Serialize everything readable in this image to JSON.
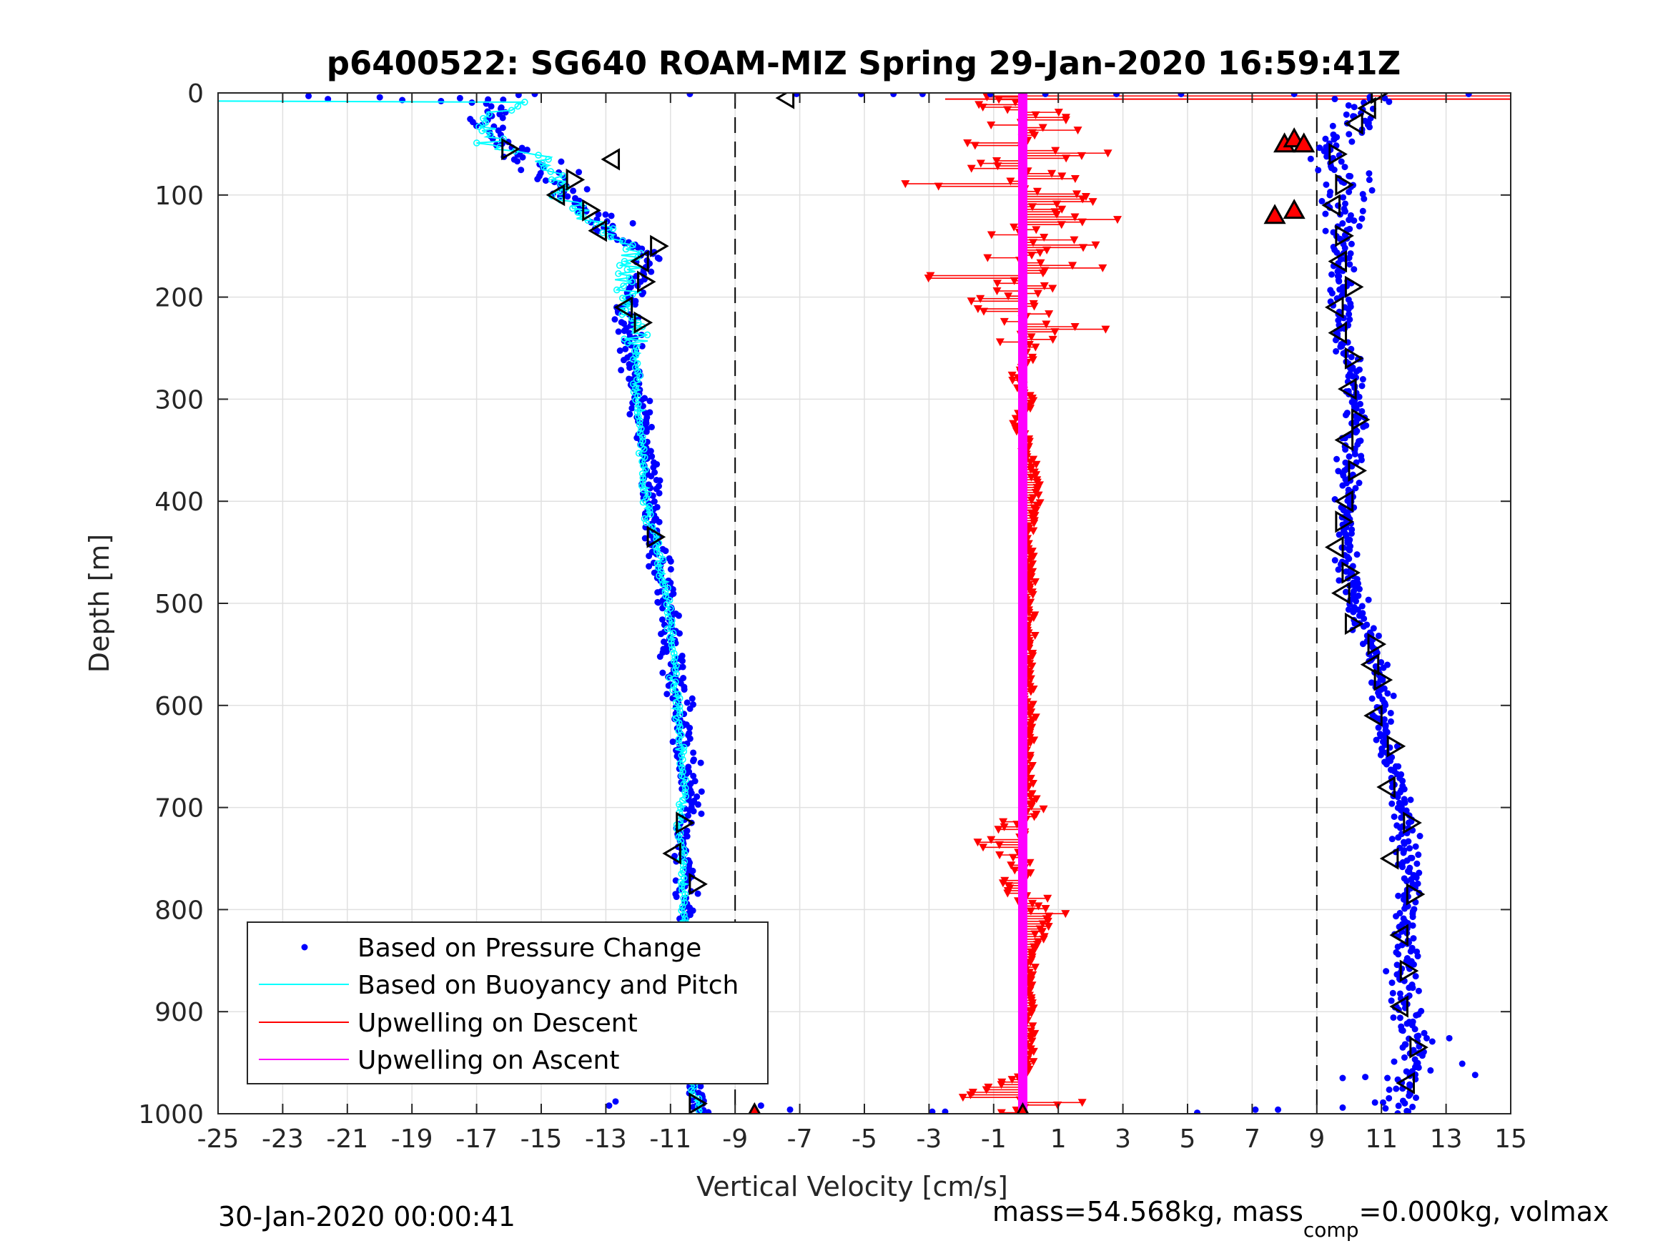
{
  "chart_data": {
    "type": "scatter",
    "title": "p6400522: SG640 ROAM-MIZ Spring 29-Jan-2020 16:59:41Z",
    "xlabel": "Vertical Velocity [cm/s]",
    "ylabel": "Depth [m]",
    "xlim": [
      -25,
      15
    ],
    "ylim": [
      0,
      1000
    ],
    "y_reversed": true,
    "xticks": [
      "-25",
      "-23",
      "-21",
      "-19",
      "-17",
      "-15",
      "-13",
      "-11",
      "-9",
      "-7",
      "-5",
      "-3",
      "-1",
      "1",
      "3",
      "5",
      "7",
      "9",
      "11",
      "13",
      "15"
    ],
    "yticks": [
      "0",
      "100",
      "200",
      "300",
      "400",
      "500",
      "600",
      "700",
      "800",
      "900",
      "1000"
    ],
    "grid": true,
    "legend_position": "bottom-left",
    "reference_lines_x": [
      -9,
      9
    ],
    "footer_left": "30-Jan-2020 00:00:41",
    "footer_right": {
      "prefix": "mass=54.568kg, mass",
      "sub": "comp",
      "suffix": "=0.000kg, volmax"
    },
    "colors": {
      "pressure": "#0000ff",
      "buoyancy": "#00ffff",
      "upwelling_descent": "#ff0000",
      "upwelling_ascent": "#ff00ff",
      "marker": "#000000",
      "refline": "#000000"
    },
    "series": [
      {
        "name": "Based on Pressure Change",
        "style": "dots",
        "descent_profile": [
          [
            0,
            -24.2
          ],
          [
            5,
            -17
          ],
          [
            10,
            -16.5
          ],
          [
            30,
            -16.6
          ],
          [
            50,
            -16.4
          ],
          [
            60,
            -15.5
          ],
          [
            70,
            -15
          ],
          [
            90,
            -14.5
          ],
          [
            110,
            -14
          ],
          [
            120,
            -13.3
          ],
          [
            140,
            -12.8
          ],
          [
            150,
            -12
          ],
          [
            160,
            -11.6
          ],
          [
            180,
            -12
          ],
          [
            200,
            -12.2
          ],
          [
            220,
            -12.4
          ],
          [
            240,
            -12.2
          ],
          [
            260,
            -12.2
          ],
          [
            300,
            -12.1
          ],
          [
            340,
            -11.8
          ],
          [
            360,
            -11.7
          ],
          [
            400,
            -11.6
          ],
          [
            440,
            -11.5
          ],
          [
            480,
            -11.2
          ],
          [
            520,
            -11
          ],
          [
            560,
            -10.9
          ],
          [
            600,
            -10.7
          ],
          [
            640,
            -10.6
          ],
          [
            680,
            -10.4
          ],
          [
            700,
            -10.3
          ],
          [
            720,
            -10.6
          ],
          [
            740,
            -10.8
          ],
          [
            760,
            -10.4
          ],
          [
            800,
            -10.6
          ],
          [
            860,
            -10.5
          ],
          [
            900,
            -10.4
          ],
          [
            940,
            -10.3
          ],
          [
            980,
            -10.2
          ],
          [
            1000,
            -10
          ]
        ],
        "ascent_profile": [
          [
            0,
            10.8
          ],
          [
            10,
            10.5
          ],
          [
            30,
            10.2
          ],
          [
            50,
            9.6
          ],
          [
            60,
            9.1
          ],
          [
            80,
            9.9
          ],
          [
            100,
            9.8
          ],
          [
            120,
            9.7
          ],
          [
            140,
            9.8
          ],
          [
            160,
            9.9
          ],
          [
            200,
            9.7
          ],
          [
            240,
            9.8
          ],
          [
            280,
            10.1
          ],
          [
            300,
            10.2
          ],
          [
            340,
            10.1
          ],
          [
            380,
            10
          ],
          [
            420,
            9.9
          ],
          [
            460,
            10
          ],
          [
            500,
            10.2
          ],
          [
            520,
            10.4
          ],
          [
            540,
            10.7
          ],
          [
            560,
            10.9
          ],
          [
            580,
            11
          ],
          [
            620,
            11
          ],
          [
            660,
            11.3
          ],
          [
            700,
            11.6
          ],
          [
            740,
            11.8
          ],
          [
            780,
            11.9
          ],
          [
            820,
            11.8
          ],
          [
            860,
            11.7
          ],
          [
            900,
            11.8
          ],
          [
            940,
            12
          ],
          [
            980,
            11.7
          ],
          [
            1000,
            11.4
          ]
        ]
      },
      {
        "name": "Based on Buoyancy and Pitch",
        "style": "line",
        "profile": [
          [
            8,
            -25
          ],
          [
            9,
            -16
          ],
          [
            11,
            -15.4
          ],
          [
            20,
            -16.6
          ],
          [
            40,
            -16.8
          ],
          [
            55,
            -16.4
          ],
          [
            60,
            -15
          ],
          [
            70,
            -14.8
          ],
          [
            80,
            -14.5
          ],
          [
            100,
            -14.6
          ],
          [
            110,
            -14
          ],
          [
            125,
            -13.5
          ],
          [
            140,
            -12.8
          ],
          [
            150,
            -12.3
          ],
          [
            160,
            -12.1
          ],
          [
            180,
            -12.4
          ],
          [
            200,
            -12.3
          ],
          [
            220,
            -12.2
          ],
          [
            240,
            -12.1
          ],
          [
            300,
            -12
          ],
          [
            340,
            -11.9
          ],
          [
            380,
            -11.8
          ],
          [
            420,
            -11.7
          ],
          [
            440,
            -11.4
          ],
          [
            480,
            -11.2
          ],
          [
            520,
            -11
          ],
          [
            560,
            -10.9
          ],
          [
            600,
            -10.8
          ],
          [
            640,
            -10.7
          ],
          [
            680,
            -10.6
          ],
          [
            700,
            -10.6
          ],
          [
            720,
            -10.8
          ],
          [
            760,
            -10.6
          ],
          [
            800,
            -10.6
          ],
          [
            860,
            -10.5
          ],
          [
            900,
            -10.5
          ],
          [
            940,
            -10.4
          ],
          [
            980,
            -10.3
          ],
          [
            1000,
            -10
          ]
        ]
      },
      {
        "name": "Upwelling on Descent",
        "style": "stems",
        "profile": [
          [
            10,
            -2.4
          ],
          [
            20,
            0.5
          ],
          [
            30,
            -0.3
          ],
          [
            40,
            1.2
          ],
          [
            50,
            -1.5
          ],
          [
            60,
            2.0
          ],
          [
            70,
            -1.8
          ],
          [
            80,
            1.5
          ],
          [
            90,
            -2.5
          ],
          [
            100,
            2.2
          ],
          [
            110,
            0.8
          ],
          [
            120,
            1.5
          ],
          [
            130,
            0.5
          ],
          [
            140,
            -1.0
          ],
          [
            150,
            2.0
          ],
          [
            160,
            -0.6
          ],
          [
            170,
            1.4
          ],
          [
            180,
            -1.5
          ],
          [
            190,
            0.5
          ],
          [
            200,
            -0.8
          ],
          [
            210,
            0.4
          ],
          [
            220,
            -1.2
          ],
          [
            230,
            1.0
          ],
          [
            240,
            -0.6
          ],
          [
            260,
            0.2
          ],
          [
            280,
            -0.4
          ],
          [
            300,
            0.2
          ],
          [
            320,
            -0.3
          ],
          [
            360,
            0.2
          ],
          [
            400,
            0.3
          ],
          [
            440,
            0.1
          ],
          [
            480,
            0.1
          ],
          [
            540,
            0.1
          ],
          [
            600,
            0.1
          ],
          [
            660,
            0.1
          ],
          [
            700,
            0.2
          ],
          [
            720,
            -0.3
          ],
          [
            740,
            -0.9
          ],
          [
            760,
            0.2
          ],
          [
            780,
            -0.7
          ],
          [
            800,
            0.8
          ],
          [
            840,
            0.2
          ],
          [
            880,
            0.1
          ],
          [
            920,
            0.1
          ],
          [
            960,
            0.1
          ],
          [
            985,
            -2.0
          ],
          [
            990,
            2.2
          ],
          [
            995,
            -0.8
          ]
        ]
      },
      {
        "name": "Upwelling on Ascent",
        "style": "line",
        "profile": [
          [
            0,
            -0.1
          ],
          [
            1000,
            -0.1
          ]
        ]
      }
    ],
    "markers": {
      "descent_triangles": [
        [
          5,
          -7.4,
          "left"
        ],
        [
          55,
          -16,
          "right"
        ],
        [
          65,
          -12.8,
          "left"
        ],
        [
          85,
          -14,
          "right"
        ],
        [
          100,
          -14.5,
          "left"
        ],
        [
          115,
          -13.5,
          "right"
        ],
        [
          135,
          -13.2,
          "left"
        ],
        [
          150,
          -11.4,
          "right"
        ],
        [
          165,
          -11.9,
          "left"
        ],
        [
          185,
          -11.8,
          "right"
        ],
        [
          210,
          -12.4,
          "left"
        ],
        [
          225,
          -11.9,
          "right"
        ],
        [
          435,
          -11.5,
          "right"
        ],
        [
          715,
          -10.6,
          "right"
        ],
        [
          745,
          -10.9,
          "left"
        ],
        [
          775,
          -10.2,
          "right"
        ],
        [
          990,
          -10.2,
          "right"
        ]
      ],
      "ascent_triangles": [
        [
          0,
          10.9,
          "right"
        ],
        [
          15,
          10.6,
          "left"
        ],
        [
          30,
          10.2,
          "left"
        ],
        [
          60,
          9.6,
          "right"
        ],
        [
          90,
          9.8,
          "right"
        ],
        [
          110,
          9.5,
          "left"
        ],
        [
          140,
          9.8,
          "right"
        ],
        [
          165,
          9.7,
          "left"
        ],
        [
          190,
          10.1,
          "right"
        ],
        [
          210,
          9.6,
          "left"
        ],
        [
          235,
          9.7,
          "left"
        ],
        [
          260,
          10.1,
          "right"
        ],
        [
          290,
          10,
          "left"
        ],
        [
          320,
          10.3,
          "right"
        ],
        [
          340,
          9.9,
          "left"
        ],
        [
          370,
          10.2,
          "right"
        ],
        [
          400,
          9.9,
          "left"
        ],
        [
          420,
          9.8,
          "right"
        ],
        [
          445,
          9.6,
          "left"
        ],
        [
          470,
          10,
          "right"
        ],
        [
          490,
          9.8,
          "left"
        ],
        [
          520,
          10.1,
          "right"
        ],
        [
          540,
          10.8,
          "right"
        ],
        [
          560,
          10.7,
          "left"
        ],
        [
          575,
          11,
          "right"
        ],
        [
          610,
          10.8,
          "left"
        ],
        [
          640,
          11.4,
          "right"
        ],
        [
          680,
          11.2,
          "left"
        ],
        [
          715,
          11.9,
          "right"
        ],
        [
          750,
          11.3,
          "left"
        ],
        [
          785,
          12,
          "right"
        ],
        [
          825,
          11.6,
          "left"
        ],
        [
          860,
          11.8,
          "right"
        ],
        [
          895,
          11.6,
          "left"
        ],
        [
          935,
          12.1,
          "right"
        ],
        [
          970,
          11.8,
          "left"
        ]
      ],
      "red_triangles": [
        [
          50,
          8.0
        ],
        [
          45,
          8.3
        ],
        [
          50,
          8.6
        ],
        [
          120,
          7.7
        ],
        [
          115,
          8.3
        ],
        [
          1000,
          -8.4
        ],
        [
          1000,
          -0.1
        ]
      ]
    }
  }
}
